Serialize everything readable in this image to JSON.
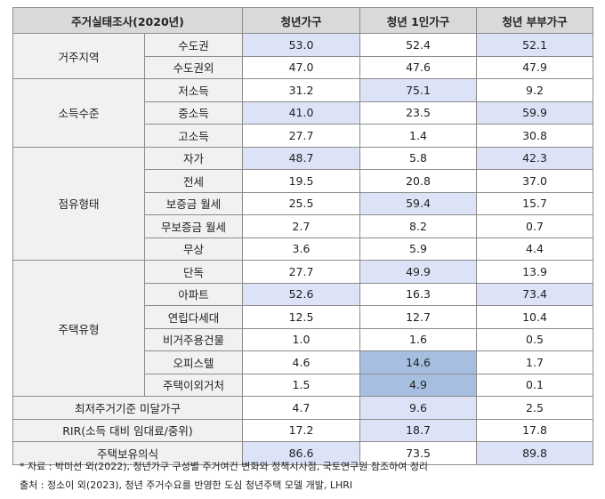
{
  "header": [
    "주거실태조사(2020년)",
    "청년가구",
    "청년 1인가구",
    "청년 부부가구"
  ],
  "colors": {
    "highlight": "#dce3f7",
    "highlight_strong": "#a6bfe0",
    "header_bg": "#d9d9d9",
    "label_bg": "#f1f1f1"
  },
  "groups": [
    {
      "label": "거주지역",
      "rows": [
        {
          "label": "수도권",
          "values": [
            "53.0",
            "52.4",
            "52.1"
          ],
          "hl": [
            1,
            0,
            1
          ]
        },
        {
          "label": "수도권외",
          "values": [
            "47.0",
            "47.6",
            "47.9"
          ],
          "hl": [
            0,
            0,
            0
          ]
        }
      ]
    },
    {
      "label": "소득수준",
      "rows": [
        {
          "label": "저소득",
          "values": [
            "31.2",
            "75.1",
            "9.2"
          ],
          "hl": [
            0,
            1,
            0
          ]
        },
        {
          "label": "중소득",
          "values": [
            "41.0",
            "23.5",
            "59.9"
          ],
          "hl": [
            1,
            0,
            1
          ]
        },
        {
          "label": "고소득",
          "values": [
            "27.7",
            "1.4",
            "30.8"
          ],
          "hl": [
            0,
            0,
            0
          ]
        }
      ]
    },
    {
      "label": "점유형태",
      "rows": [
        {
          "label": "자가",
          "values": [
            "48.7",
            "5.8",
            "42.3"
          ],
          "hl": [
            1,
            0,
            1
          ]
        },
        {
          "label": "전세",
          "values": [
            "19.5",
            "20.8",
            "37.0"
          ],
          "hl": [
            0,
            0,
            0
          ]
        },
        {
          "label": "보증금 월세",
          "values": [
            "25.5",
            "59.4",
            "15.7"
          ],
          "hl": [
            0,
            1,
            0
          ]
        },
        {
          "label": "무보증금 월세",
          "values": [
            "2.7",
            "8.2",
            "0.7"
          ],
          "hl": [
            0,
            0,
            0
          ]
        },
        {
          "label": "무상",
          "values": [
            "3.6",
            "5.9",
            "4.4"
          ],
          "hl": [
            0,
            0,
            0
          ]
        }
      ]
    },
    {
      "label": "주택유형",
      "rows": [
        {
          "label": "단독",
          "values": [
            "27.7",
            "49.9",
            "13.9"
          ],
          "hl": [
            0,
            1,
            0
          ]
        },
        {
          "label": "아파트",
          "values": [
            "52.6",
            "16.3",
            "73.4"
          ],
          "hl": [
            1,
            0,
            1
          ]
        },
        {
          "label": "연립다세대",
          "values": [
            "12.5",
            "12.7",
            "10.4"
          ],
          "hl": [
            0,
            0,
            0
          ]
        },
        {
          "label": "비거주용건물",
          "values": [
            "1.0",
            "1.6",
            "0.5"
          ],
          "hl": [
            0,
            0,
            0
          ]
        },
        {
          "label": "오피스텔",
          "values": [
            "4.6",
            "14.6",
            "1.7"
          ],
          "hl": [
            0,
            2,
            0
          ]
        },
        {
          "label": "주택이외거처",
          "values": [
            "1.5",
            "4.9",
            "0.1"
          ],
          "hl": [
            0,
            2,
            0
          ]
        }
      ]
    }
  ],
  "single_rows": [
    {
      "label": "최저주거기준 미달가구",
      "values": [
        "4.7",
        "9.6",
        "2.5"
      ],
      "hl": [
        0,
        1,
        0
      ]
    },
    {
      "label": "RIR(소득 대비 임대료/중위)",
      "values": [
        "17.2",
        "18.7",
        "17.8"
      ],
      "hl": [
        0,
        1,
        0
      ]
    },
    {
      "label": "주택보유의식",
      "values": [
        "86.6",
        "73.5",
        "89.8"
      ],
      "hl": [
        1,
        0,
        1
      ]
    }
  ],
  "notes": [
    "* 자료 : 박미선 외(2022), 청년가구 구성별 주거여건 변화와 정책시사점, 국토연구원 참조하여 정리",
    "출처 : 정소이 외(2023), 청년 주거수요를 반영한 도심 청년주택 모델 개발, LHRI"
  ]
}
